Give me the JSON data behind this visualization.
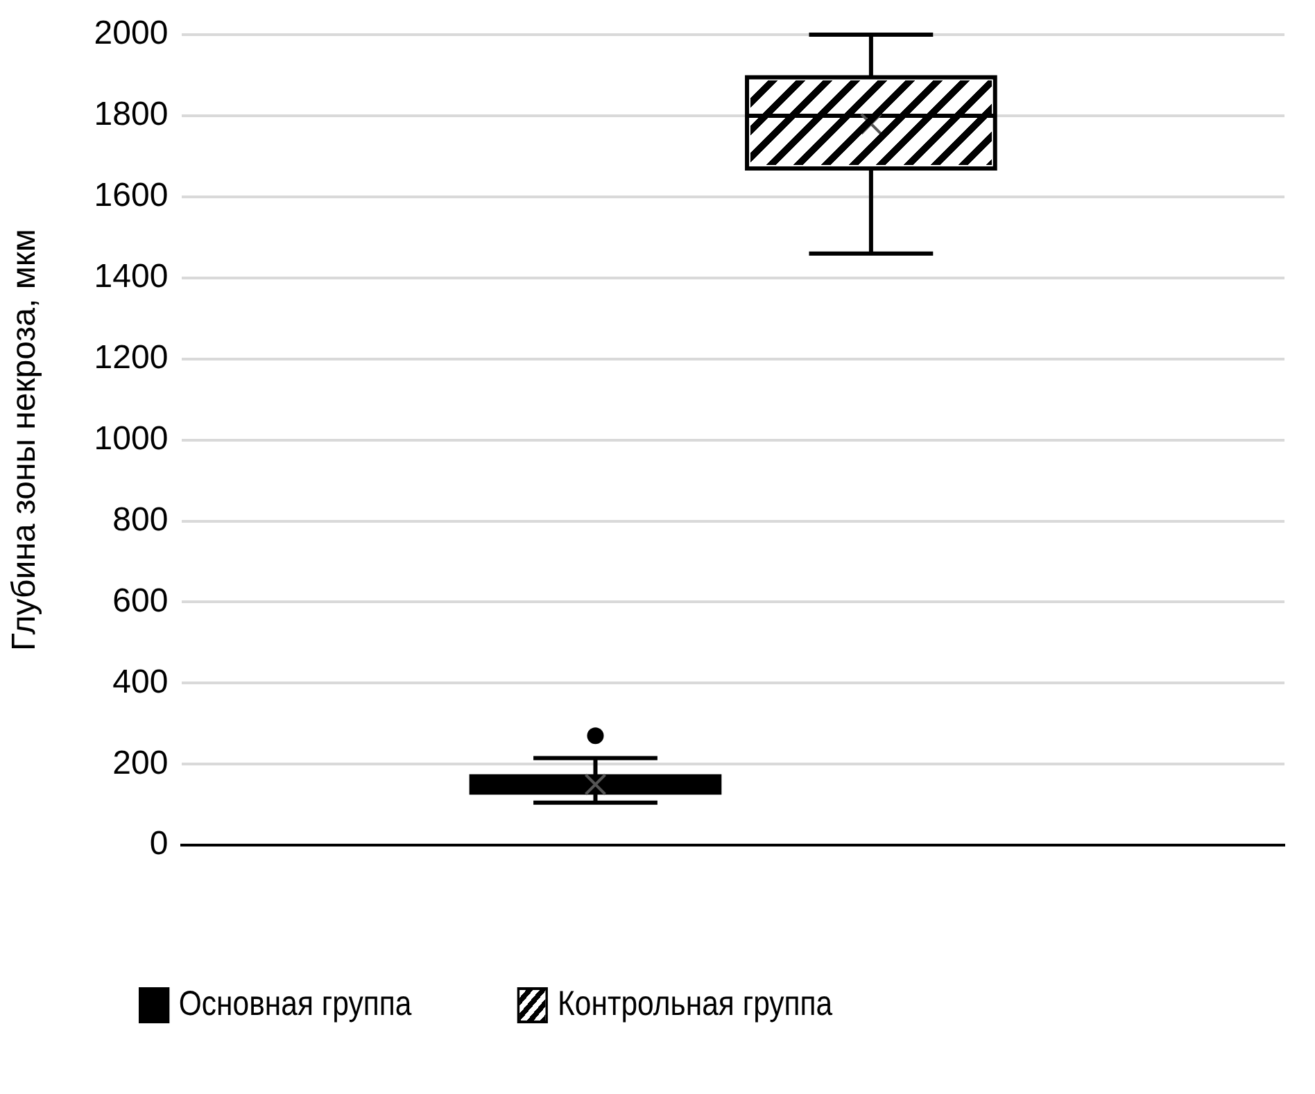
{
  "chart_data": {
    "type": "box",
    "ylabel": "Глубина зоны некроза, мкм",
    "categories": [
      null
    ],
    "series": [
      {
        "name": "Основная группа",
        "color": "#000000",
        "boxes": [
          {
            "low": 105,
            "q1": 130,
            "median": 150,
            "q3": 170,
            "high": 215,
            "mean": 150,
            "outliers": [
              270
            ]
          }
        ]
      },
      {
        "name": "Контрольная группа",
        "color": "#ffffff",
        "boxes": [
          {
            "low": 1460,
            "q1": 1670,
            "median": 1800,
            "q3": 1895,
            "high": 2000,
            "mean": 1780
          }
        ]
      }
    ],
    "ylim": [
      0,
      2000
    ],
    "yticks": [
      0,
      200,
      400,
      600,
      800,
      1000,
      1200,
      1400,
      1600,
      1800,
      2000
    ],
    "grid": "y",
    "legend": "bottom"
  }
}
